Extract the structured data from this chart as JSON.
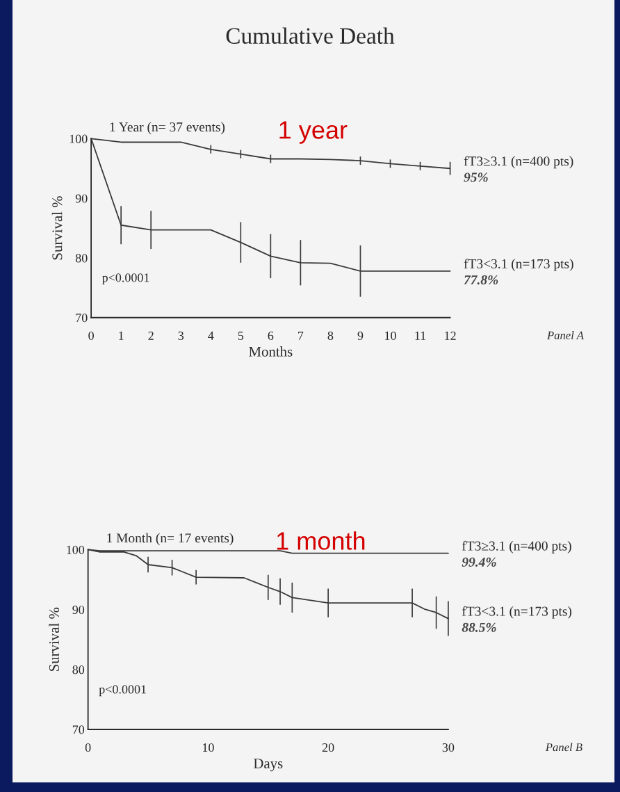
{
  "chart_data": [
    {
      "type": "line",
      "title": "Cumulative Death",
      "subtitle": "1 Year (n= 37 events)",
      "xlabel": "Months",
      "ylabel": "Survival %",
      "xlim": [
        0,
        12
      ],
      "xticks": [
        0,
        1,
        2,
        3,
        4,
        5,
        6,
        7,
        8,
        9,
        10,
        11,
        12
      ],
      "ylim": [
        70,
        100
      ],
      "yticks": [
        70,
        80,
        90,
        100
      ],
      "grid": false,
      "legend": false,
      "marker": "none",
      "line_style": "solid",
      "series": [
        {
          "name": "fT3≥3.1 (n=400 pts)",
          "color": "#3a3a3a",
          "x": [
            0,
            1,
            2,
            3,
            4,
            5,
            6,
            7,
            8,
            9,
            10,
            11,
            12
          ],
          "values": [
            100,
            99.4,
            99.4,
            99.4,
            98.2,
            97.4,
            96.6,
            96.6,
            96.5,
            96.3,
            95.8,
            95.4,
            95
          ],
          "errors": [
            null,
            null,
            null,
            null,
            0.7,
            0.7,
            0.7,
            null,
            null,
            0.7,
            0.7,
            0.7,
            1.1
          ]
        },
        {
          "name": "fT3<3.1 (n=173 pts)",
          "color": "#3a3a3a",
          "x": [
            0,
            1,
            2,
            3,
            4,
            5,
            6,
            7,
            8,
            9,
            12
          ],
          "values": [
            100,
            85.5,
            84.7,
            84.7,
            84.7,
            82.6,
            80.3,
            79.2,
            79.1,
            77.8,
            77.8
          ],
          "errors": [
            null,
            3.2,
            3.2,
            null,
            null,
            3.4,
            3.7,
            3.8,
            null,
            4.3,
            null
          ]
        }
      ],
      "annotations": [
        "1 year",
        "p<0.0001",
        "Panel A",
        "95%",
        "77.8%"
      ]
    },
    {
      "type": "line",
      "subtitle": "1 Month (n= 17 events)",
      "xlabel": "Days",
      "ylabel": "Survival %",
      "xlim": [
        0,
        30
      ],
      "xticks": [
        0,
        10,
        20,
        30
      ],
      "ylim": [
        70,
        100
      ],
      "yticks": [
        70,
        80,
        90,
        100
      ],
      "grid": false,
      "legend": false,
      "marker": "none",
      "line_style": "solid",
      "series": [
        {
          "name": "fT3≥3.1 (n=400 pts)",
          "color": "#3a3a3a",
          "x": [
            0,
            1,
            16,
            17,
            30
          ],
          "values": [
            100,
            99.8,
            99.8,
            99.4,
            99.4
          ]
        },
        {
          "name": "fT3<3.1 (n=173 pts)",
          "color": "#3a3a3a",
          "x": [
            0,
            1,
            3,
            4,
            5,
            7,
            9,
            13,
            14,
            15,
            16,
            17,
            20,
            27,
            28,
            29,
            30
          ],
          "values": [
            100,
            99.6,
            99.6,
            99.0,
            97.5,
            97.0,
            95.4,
            95.3,
            94.5,
            93.7,
            93.0,
            92.0,
            91.1,
            91.1,
            90.1,
            89.5,
            88.5
          ],
          "errors": [
            null,
            null,
            null,
            null,
            1.3,
            1.3,
            1.2,
            null,
            null,
            2.1,
            2.2,
            2.5,
            2.4,
            2.4,
            null,
            2.7,
            2.9
          ]
        }
      ],
      "annotations": [
        "1 month",
        "p<0.0001",
        "Panel B",
        "99.4%",
        "88.5%"
      ]
    }
  ]
}
